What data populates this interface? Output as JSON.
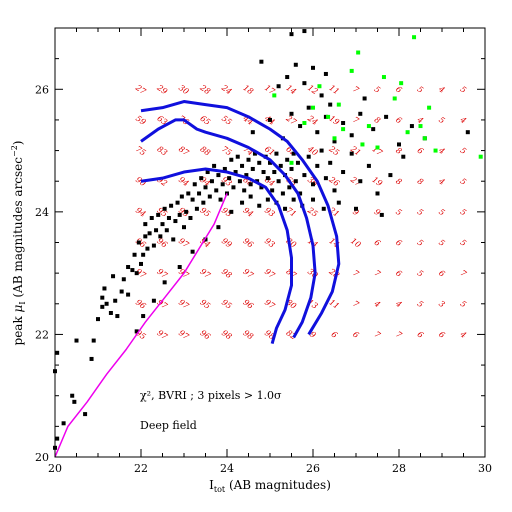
{
  "chart_data": {
    "type": "scatter",
    "xlabel_main": "I",
    "xlabel_sub": "tot",
    "xlabel_rest": " (AB magnitudes)",
    "ylabel_main": "peak ",
    "ylabel_mu": "μ",
    "ylabel_sub": "I",
    "ylabel_rest": "  (AB magnitudes arcsec",
    "ylabel_sup": "−2",
    "ylabel_close": ")",
    "xlim": [
      20,
      30
    ],
    "ylim": [
      20,
      27
    ],
    "x_ticks": [
      "20",
      "22",
      "24",
      "26",
      "28",
      "30"
    ],
    "y_ticks": [
      "20",
      "22",
      "24",
      "26"
    ],
    "annotation_1": "χ², BVRI ; 3 pixels > 1.0σ",
    "annotation_2": "Deep field",
    "colors": {
      "frame": "#000000",
      "black_points": "#000000",
      "green_points": "#00ff00",
      "contours": "#1010dd",
      "diagonal": "#ee00ee",
      "grid_numbers": "#dd0000"
    },
    "grid_columns": [
      22.0,
      22.5,
      23.0,
      23.5,
      24.0,
      24.5,
      25.0,
      25.5,
      26.0,
      26.5,
      27.0,
      27.5,
      28.0,
      28.5,
      29.0,
      29.5
    ],
    "grid_rows": [
      26.0,
      25.5,
      25.0,
      24.5,
      24.0,
      23.5,
      23.0,
      22.5,
      22.0
    ],
    "completeness_grid": [
      [
        "27",
        "29",
        "30",
        "28",
        "24",
        "18",
        "17",
        "14",
        "12",
        "11",
        "7",
        "5",
        "6",
        "5",
        "4",
        "5"
      ],
      [
        "59",
        "63",
        "76",
        "65",
        "55",
        "44",
        "44",
        "27",
        "24",
        "19",
        "7",
        "8",
        "6",
        "4",
        "5",
        "4"
      ],
      [
        "75",
        "83",
        "87",
        "88",
        "75",
        "74",
        "61",
        "62",
        "40",
        "25",
        "21",
        "17",
        "8",
        "6",
        "4",
        "5"
      ],
      [
        "90",
        "92",
        "94",
        "94",
        "93",
        "88",
        "84",
        "65",
        "36",
        "26",
        "27",
        "19",
        "8",
        "8",
        "4",
        "5"
      ],
      [
        "94",
        "95",
        "95",
        "95",
        "95",
        "94",
        "93",
        "71",
        "25",
        "21",
        "9",
        "9",
        "5",
        "5",
        "5",
        "5"
      ],
      [
        "96",
        "96",
        "97",
        "94",
        "99",
        "96",
        "93",
        "80",
        "14",
        "14",
        "10",
        "6",
        "6",
        "5",
        "5",
        "5"
      ],
      [
        "97",
        "97",
        "97",
        "97",
        "98",
        "97",
        "97",
        "87",
        "30",
        "28",
        "7",
        "7",
        "6",
        "5",
        "6",
        "7"
      ],
      [
        "96",
        "97",
        "97",
        "95",
        "95",
        "96",
        "97",
        "80",
        "13",
        "11",
        "7",
        "4",
        "4",
        "5",
        "3",
        "5"
      ],
      [
        "95",
        "97",
        "97",
        "96",
        "98",
        "98",
        "98",
        "82",
        "9",
        "6",
        "6",
        "7",
        "7",
        "6",
        "6",
        "4"
      ]
    ],
    "contours": [
      [
        [
          22.0,
          25.65
        ],
        [
          22.5,
          25.7
        ],
        [
          23.0,
          25.8
        ],
        [
          23.5,
          25.75
        ],
        [
          24.0,
          25.7
        ],
        [
          24.5,
          25.55
        ],
        [
          25.0,
          25.35
        ],
        [
          25.4,
          25.15
        ],
        [
          25.75,
          24.85
        ],
        [
          26.1,
          24.5
        ],
        [
          26.35,
          24.1
        ],
        [
          26.55,
          23.6
        ],
        [
          26.6,
          23.15
        ],
        [
          26.45,
          22.7
        ],
        [
          26.2,
          22.35
        ],
        [
          25.9,
          22.0
        ]
      ],
      [
        [
          22.0,
          25.15
        ],
        [
          22.4,
          25.35
        ],
        [
          22.8,
          25.5
        ],
        [
          23.0,
          25.5
        ],
        [
          23.3,
          25.35
        ],
        [
          23.5,
          25.3
        ],
        [
          24.0,
          25.2
        ],
        [
          24.5,
          25.05
        ],
        [
          25.0,
          24.85
        ],
        [
          25.35,
          24.6
        ],
        [
          25.65,
          24.3
        ],
        [
          25.85,
          23.9
        ],
        [
          26.0,
          23.45
        ],
        [
          26.05,
          23.0
        ],
        [
          25.95,
          22.6
        ],
        [
          25.75,
          22.2
        ],
        [
          25.55,
          21.95
        ]
      ],
      [
        [
          22.0,
          24.5
        ],
        [
          22.5,
          24.55
        ],
        [
          23.0,
          24.65
        ],
        [
          23.5,
          24.7
        ],
        [
          24.0,
          24.65
        ],
        [
          24.5,
          24.55
        ],
        [
          24.9,
          24.4
        ],
        [
          25.2,
          24.1
        ],
        [
          25.4,
          23.7
        ],
        [
          25.5,
          23.25
        ],
        [
          25.5,
          22.8
        ],
        [
          25.35,
          22.4
        ],
        [
          25.15,
          22.1
        ],
        [
          25.05,
          21.85
        ]
      ]
    ],
    "diagonal_line": [
      [
        20.0,
        20.0
      ],
      [
        20.3,
        20.5
      ],
      [
        20.75,
        20.9
      ],
      [
        21.2,
        21.35
      ],
      [
        21.65,
        21.75
      ],
      [
        22.1,
        22.2
      ],
      [
        22.55,
        22.6
      ],
      [
        23.0,
        23.0
      ],
      [
        23.35,
        23.4
      ],
      [
        23.7,
        23.8
      ],
      [
        24.0,
        24.3
      ]
    ],
    "series": [
      {
        "color": "#000000",
        "points": [
          [
            20.0,
            20.15
          ],
          [
            20.05,
            20.3
          ],
          [
            20.2,
            20.55
          ],
          [
            20.45,
            20.9
          ],
          [
            20.7,
            20.7
          ],
          [
            20.4,
            21.0
          ],
          [
            20.0,
            21.4
          ],
          [
            20.05,
            21.7
          ],
          [
            20.5,
            21.9
          ],
          [
            20.85,
            21.6
          ],
          [
            20.9,
            21.9
          ],
          [
            21.0,
            22.25
          ],
          [
            21.1,
            22.45
          ],
          [
            21.1,
            22.6
          ],
          [
            21.15,
            22.75
          ],
          [
            21.2,
            22.5
          ],
          [
            21.3,
            22.35
          ],
          [
            21.35,
            22.95
          ],
          [
            21.4,
            22.55
          ],
          [
            21.45,
            22.3
          ],
          [
            21.55,
            22.7
          ],
          [
            21.6,
            22.9
          ],
          [
            21.7,
            23.1
          ],
          [
            21.7,
            22.65
          ],
          [
            21.8,
            23.05
          ],
          [
            21.85,
            23.3
          ],
          [
            21.9,
            23.0
          ],
          [
            21.95,
            23.5
          ],
          [
            22.0,
            23.15
          ],
          [
            22.05,
            23.3
          ],
          [
            22.1,
            23.6
          ],
          [
            22.1,
            23.8
          ],
          [
            22.15,
            23.4
          ],
          [
            22.2,
            23.65
          ],
          [
            22.25,
            23.9
          ],
          [
            22.3,
            23.45
          ],
          [
            22.35,
            23.7
          ],
          [
            22.4,
            23.95
          ],
          [
            22.45,
            23.6
          ],
          [
            22.5,
            23.8
          ],
          [
            22.55,
            24.05
          ],
          [
            22.6,
            23.7
          ],
          [
            22.65,
            23.9
          ],
          [
            22.7,
            24.1
          ],
          [
            22.75,
            23.55
          ],
          [
            22.8,
            23.85
          ],
          [
            22.85,
            24.15
          ],
          [
            22.9,
            23.95
          ],
          [
            22.95,
            24.25
          ],
          [
            23.0,
            23.75
          ],
          [
            23.05,
            24.0
          ],
          [
            23.1,
            24.3
          ],
          [
            23.15,
            23.9
          ],
          [
            23.2,
            24.2
          ],
          [
            23.25,
            24.45
          ],
          [
            23.3,
            24.05
          ],
          [
            23.35,
            24.3
          ],
          [
            23.4,
            24.55
          ],
          [
            23.45,
            24.15
          ],
          [
            23.5,
            24.4
          ],
          [
            23.55,
            24.65
          ],
          [
            23.6,
            24.25
          ],
          [
            23.65,
            24.5
          ],
          [
            23.7,
            24.75
          ],
          [
            23.75,
            24.35
          ],
          [
            23.8,
            24.6
          ],
          [
            23.85,
            24.2
          ],
          [
            23.9,
            24.45
          ],
          [
            23.95,
            24.7
          ],
          [
            24.0,
            24.3
          ],
          [
            24.05,
            24.55
          ],
          [
            24.1,
            24.85
          ],
          [
            24.15,
            24.4
          ],
          [
            24.2,
            24.65
          ],
          [
            24.25,
            24.9
          ],
          [
            24.3,
            24.5
          ],
          [
            24.35,
            24.75
          ],
          [
            24.4,
            24.35
          ],
          [
            24.45,
            24.6
          ],
          [
            24.5,
            24.85
          ],
          [
            24.55,
            24.45
          ],
          [
            24.6,
            24.7
          ],
          [
            24.65,
            24.95
          ],
          [
            24.7,
            24.5
          ],
          [
            24.75,
            24.8
          ],
          [
            24.8,
            24.4
          ],
          [
            24.85,
            24.65
          ],
          [
            24.9,
            24.9
          ],
          [
            24.95,
            24.55
          ],
          [
            25.0,
            24.8
          ],
          [
            25.05,
            24.35
          ],
          [
            25.1,
            24.65
          ],
          [
            25.15,
            24.95
          ],
          [
            25.2,
            24.5
          ],
          [
            25.25,
            24.75
          ],
          [
            25.3,
            24.3
          ],
          [
            25.35,
            24.6
          ],
          [
            25.4,
            24.85
          ],
          [
            25.45,
            24.4
          ],
          [
            25.5,
            24.7
          ],
          [
            25.55,
            24.95
          ],
          [
            25.6,
            24.5
          ],
          [
            25.65,
            24.8
          ],
          [
            25.7,
            24.3
          ],
          [
            25.8,
            24.6
          ],
          [
            25.9,
            24.9
          ],
          [
            26.0,
            24.45
          ],
          [
            26.1,
            24.75
          ],
          [
            26.2,
            25.0
          ],
          [
            26.3,
            24.55
          ],
          [
            26.4,
            24.8
          ],
          [
            26.5,
            24.35
          ],
          [
            26.7,
            24.65
          ],
          [
            26.9,
            24.95
          ],
          [
            27.1,
            24.5
          ],
          [
            27.3,
            24.75
          ],
          [
            27.5,
            24.3
          ],
          [
            27.8,
            24.6
          ],
          [
            28.1,
            24.9
          ],
          [
            24.6,
            25.3
          ],
          [
            25.0,
            25.5
          ],
          [
            25.3,
            25.2
          ],
          [
            25.5,
            25.6
          ],
          [
            25.7,
            25.4
          ],
          [
            25.9,
            25.7
          ],
          [
            26.1,
            25.3
          ],
          [
            26.3,
            25.55
          ],
          [
            26.5,
            25.15
          ],
          [
            26.7,
            25.45
          ],
          [
            26.9,
            25.25
          ],
          [
            27.1,
            25.6
          ],
          [
            27.4,
            25.35
          ],
          [
            27.7,
            25.55
          ],
          [
            28.0,
            25.1
          ],
          [
            28.3,
            25.4
          ],
          [
            28.6,
            25.2
          ],
          [
            29.6,
            25.3
          ],
          [
            25.2,
            26.05
          ],
          [
            25.4,
            26.2
          ],
          [
            25.6,
            26.4
          ],
          [
            25.8,
            26.1
          ],
          [
            26.0,
            26.35
          ],
          [
            26.3,
            26.25
          ],
          [
            24.8,
            26.45
          ],
          [
            25.5,
            26.9
          ],
          [
            25.8,
            26.95
          ],
          [
            26.2,
            25.9
          ],
          [
            26.4,
            25.75
          ],
          [
            27.2,
            25.85
          ],
          [
            21.9,
            22.05
          ],
          [
            22.05,
            22.3
          ],
          [
            22.3,
            22.55
          ],
          [
            22.55,
            22.85
          ],
          [
            22.9,
            23.1
          ],
          [
            23.2,
            23.35
          ],
          [
            23.5,
            23.55
          ],
          [
            23.8,
            23.75
          ],
          [
            24.1,
            24.0
          ],
          [
            24.35,
            24.15
          ],
          [
            24.55,
            24.25
          ],
          [
            24.75,
            24.1
          ],
          [
            24.95,
            24.2
          ],
          [
            25.15,
            24.15
          ],
          [
            25.35,
            24.05
          ],
          [
            25.55,
            24.2
          ],
          [
            25.75,
            24.1
          ],
          [
            26.0,
            24.2
          ],
          [
            26.25,
            24.05
          ],
          [
            26.6,
            24.15
          ],
          [
            27.0,
            24.05
          ],
          [
            27.6,
            23.95
          ]
        ]
      },
      {
        "color": "#00ff00",
        "points": [
          [
            25.5,
            24.8
          ],
          [
            25.8,
            25.45
          ],
          [
            26.0,
            25.7
          ],
          [
            26.15,
            26.05
          ],
          [
            26.35,
            25.55
          ],
          [
            26.5,
            25.2
          ],
          [
            26.7,
            25.35
          ],
          [
            26.9,
            26.3
          ],
          [
            27.05,
            26.6
          ],
          [
            27.15,
            25.1
          ],
          [
            27.3,
            25.4
          ],
          [
            27.5,
            25.05
          ],
          [
            27.65,
            26.2
          ],
          [
            27.9,
            25.85
          ],
          [
            28.05,
            26.1
          ],
          [
            28.2,
            25.3
          ],
          [
            28.35,
            26.85
          ],
          [
            28.5,
            25.4
          ],
          [
            28.6,
            25.2
          ],
          [
            28.7,
            25.7
          ],
          [
            28.85,
            25.0
          ],
          [
            29.9,
            24.9
          ],
          [
            25.1,
            25.9
          ],
          [
            26.6,
            25.75
          ]
        ]
      }
    ]
  }
}
